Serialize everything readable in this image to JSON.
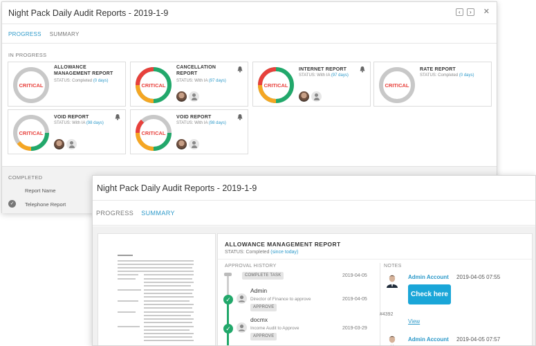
{
  "back_window": {
    "title": "Night Pack Daily Audit Reports - 2019-1-9",
    "tabs": [
      {
        "label": "PROGRESS"
      },
      {
        "label": "SUMMARY"
      }
    ],
    "in_progress_label": "IN PROGRESS",
    "cards": [
      {
        "title": "ALLOWANCE MANAGEMENT REPORT",
        "badge": "CRITICAL",
        "status_prefix": "STATUS:",
        "status": "Completed",
        "days": "(0 days)",
        "bell": false,
        "avatars": []
      },
      {
        "title": "CANCELLATION REPORT",
        "badge": "CRITICAL",
        "status_prefix": "STATUS:",
        "status": "With IA",
        "days": "(97 days)",
        "bell": true,
        "avatars": [
          "photo",
          "generic"
        ]
      },
      {
        "title": "INTERNET REPORT",
        "badge": "CRITICAL",
        "status_prefix": "STATUS:",
        "status": "With IA",
        "days": "(97 days)",
        "bell": true,
        "avatars": [
          "photo",
          "generic"
        ]
      },
      {
        "title": "RATE REPORT",
        "badge": "CRITICAL",
        "status_prefix": "STATUS:",
        "status": "Completed",
        "days": "(0 days)",
        "bell": false,
        "avatars": []
      },
      {
        "title": "VOID REPORT",
        "badge": "CRITICAL",
        "status_prefix": "STATUS:",
        "status": "With IA",
        "days": "(98 days)",
        "bell": true,
        "avatars": [
          "photo",
          "generic"
        ]
      },
      {
        "title": "VOID REPORT",
        "badge": "CRITICAL",
        "status_prefix": "STATUS:",
        "status": "With IA",
        "days": "(98 days)",
        "bell": true,
        "avatars": [
          "photo",
          "generic"
        ]
      }
    ],
    "completed": {
      "label": "COMPLETED",
      "column_header": "Report Name",
      "rows": [
        {
          "name": "Telephone Report"
        }
      ]
    }
  },
  "front_window": {
    "title": "Night Pack Daily Audit Reports - 2019-1-9",
    "tabs": [
      {
        "label": "PROGRESS"
      },
      {
        "label": "SUMMARY"
      }
    ],
    "report_title": "ALLOWANCE MANAGEMENT REPORT",
    "status_prefix": "STATUS:",
    "status": "Completed",
    "status_since": "(since today)",
    "approval_history_label": "APPROVAL HISTORY",
    "notes_label": "NOTES",
    "approval_history": [
      {
        "pill": "COMPLETE TASK",
        "date": "2019-04-05"
      },
      {
        "name": "Admin",
        "role": "Director of Finance to approve",
        "pill": "APPROVE",
        "date": "2019-04-05"
      },
      {
        "name": "docmx",
        "role": "Income Audit to Approve",
        "pill": "APPROVE",
        "date": "2019-03-29"
      }
    ],
    "notes": [
      {
        "author": "Admin Account",
        "time": "2019-04-05 07:55",
        "button": "Check here",
        "id": "#4392",
        "link": "View"
      },
      {
        "author": "Admin Account",
        "time": "2019-04-05 07:57"
      }
    ]
  },
  "colors": {
    "accent": "#2c99c9",
    "green": "#22a86b",
    "orange": "#f5a623",
    "red": "#e8413c",
    "grey_ring": "#c8c8c8",
    "critical_text": "#e8413c"
  }
}
